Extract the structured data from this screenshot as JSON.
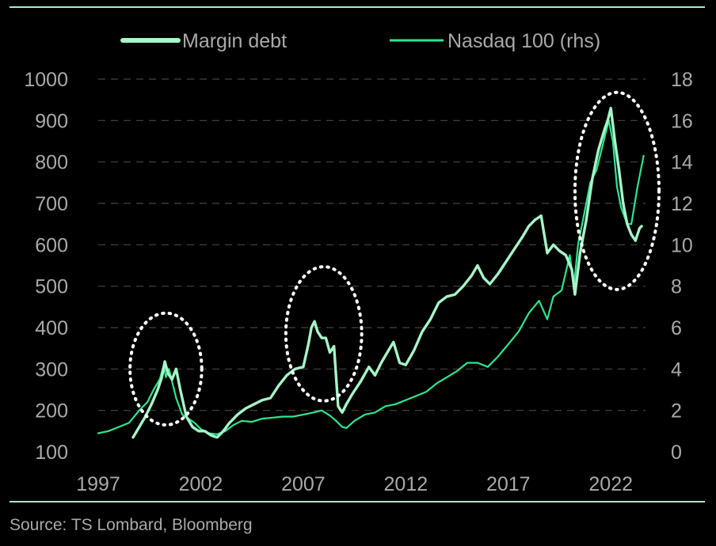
{
  "source_note": "Source: TS Lombard, Bloomberg",
  "colors": {
    "background": "#000000",
    "frame_line": "#9ef2c3",
    "margin_debt": "#a6f5c8",
    "nasdaq": "#2ee58e",
    "text": "#a9a9a9",
    "grid": "#444444",
    "highlight_circle": "#ffffff"
  },
  "chart_data": {
    "type": "line",
    "legend": {
      "placement": "top-center",
      "entries": [
        "Margin debt",
        "Nasdaq 100 (rhs)"
      ]
    },
    "x_tick_labels": [
      "1997",
      "2002",
      "2007",
      "2012",
      "2017",
      "2022"
    ],
    "xlim": [
      1997,
      2024
    ],
    "left_axis": {
      "ylim": [
        100,
        1000
      ],
      "tick_labels": [
        "1000",
        "900",
        "800",
        "700",
        "600",
        "500",
        "400",
        "300",
        "200",
        "100"
      ]
    },
    "right_axis": {
      "ylim": [
        0,
        18
      ],
      "tick_labels": [
        "18",
        "16",
        "14",
        "12",
        "10",
        "8",
        "6",
        "4",
        "2",
        "0"
      ]
    },
    "grid": "horizontal dashed",
    "series": [
      {
        "name": "Margin debt",
        "axis": "left",
        "x": [
          1998.7,
          1999.0,
          1999.3,
          1999.6,
          1999.9,
          2000.1,
          2000.25,
          2000.4,
          2000.6,
          2000.8,
          2001.0,
          2001.3,
          2001.6,
          2001.9,
          2002.2,
          2002.5,
          2002.8,
          2003.1,
          2003.4,
          2003.8,
          2004.2,
          2004.6,
          2005.0,
          2005.4,
          2005.8,
          2006.2,
          2006.6,
          2007.0,
          2007.25,
          2007.4,
          2007.55,
          2007.7,
          2007.9,
          2008.1,
          2008.3,
          2008.5,
          2008.7,
          2008.9,
          2009.1,
          2009.4,
          2009.8,
          2010.2,
          2010.5,
          2010.8,
          2011.1,
          2011.4,
          2011.7,
          2012.0,
          2012.4,
          2012.8,
          2013.2,
          2013.6,
          2014.0,
          2014.4,
          2014.8,
          2015.2,
          2015.5,
          2015.8,
          2016.1,
          2016.5,
          2016.9,
          2017.3,
          2017.7,
          2018.0,
          2018.3,
          2018.6,
          2018.9,
          2019.2,
          2019.5,
          2019.8,
          2020.1,
          2020.25,
          2020.5,
          2020.8,
          2021.1,
          2021.4,
          2021.7,
          2021.85,
          2022.0,
          2022.2,
          2022.4,
          2022.6,
          2022.8,
          2023.0,
          2023.2,
          2023.4,
          2023.5
        ],
        "values": [
          135,
          160,
          185,
          215,
          250,
          280,
          318,
          290,
          275,
          300,
          250,
          185,
          160,
          150,
          150,
          140,
          135,
          150,
          170,
          190,
          205,
          215,
          225,
          230,
          260,
          285,
          300,
          305,
          360,
          400,
          415,
          390,
          375,
          375,
          340,
          355,
          210,
          195,
          215,
          240,
          270,
          305,
          285,
          315,
          340,
          365,
          315,
          310,
          345,
          390,
          420,
          460,
          475,
          480,
          500,
          525,
          550,
          520,
          505,
          530,
          560,
          590,
          620,
          645,
          660,
          670,
          580,
          600,
          585,
          575,
          540,
          480,
          580,
          660,
          760,
          830,
          880,
          900,
          930,
          850,
          780,
          700,
          650,
          625,
          610,
          640,
          645
        ]
      },
      {
        "name": "Nasdaq 100 (rhs)",
        "axis": "right",
        "x": [
          1997.0,
          1997.5,
          1998.0,
          1998.5,
          1999.0,
          1999.4,
          1999.7,
          2000.0,
          2000.2,
          2000.3,
          2000.45,
          2000.6,
          2000.8,
          2001.1,
          2001.4,
          2001.7,
          2002.0,
          2002.4,
          2002.8,
          2003.2,
          2003.6,
          2004.0,
          2004.5,
          2005.0,
          2005.5,
          2006.0,
          2006.5,
          2007.0,
          2007.5,
          2007.9,
          2008.3,
          2008.6,
          2008.9,
          2009.1,
          2009.5,
          2010.0,
          2010.5,
          2011.0,
          2011.5,
          2012.0,
          2012.5,
          2013.0,
          2013.5,
          2014.0,
          2014.5,
          2015.0,
          2015.5,
          2016.0,
          2016.5,
          2017.0,
          2017.5,
          2018.0,
          2018.5,
          2018.9,
          2019.2,
          2019.6,
          2020.0,
          2020.2,
          2020.4,
          2020.7,
          2021.0,
          2021.3,
          2021.6,
          2021.9,
          2022.1,
          2022.3,
          2022.5,
          2022.8,
          2023.0,
          2023.3,
          2023.6
        ],
        "values": [
          0.9,
          1.0,
          1.2,
          1.4,
          2.0,
          2.4,
          3.0,
          3.5,
          4.2,
          3.6,
          4.0,
          3.4,
          2.6,
          1.8,
          1.6,
          1.4,
          1.1,
          0.9,
          0.85,
          1.0,
          1.3,
          1.5,
          1.45,
          1.6,
          1.65,
          1.7,
          1.7,
          1.8,
          1.9,
          2.0,
          1.75,
          1.5,
          1.2,
          1.15,
          1.5,
          1.8,
          1.9,
          2.2,
          2.3,
          2.5,
          2.7,
          2.9,
          3.3,
          3.6,
          3.9,
          4.3,
          4.3,
          4.1,
          4.6,
          5.2,
          5.8,
          6.7,
          7.3,
          6.4,
          7.5,
          7.8,
          9.5,
          8.0,
          10.0,
          11.5,
          13.0,
          13.6,
          14.8,
          16.0,
          15.0,
          12.8,
          11.8,
          11.0,
          11.0,
          12.8,
          14.3
        ]
      }
    ],
    "highlights": [
      {
        "x_center": 2000.3,
        "y_center": 300,
        "x_half_width": 1.75,
        "y_half_height": 135
      },
      {
        "x_center": 2008.0,
        "y_center": 385,
        "x_half_width": 1.85,
        "y_half_height": 162
      },
      {
        "x_center": 2022.3,
        "y_center": 730,
        "x_half_width": 2.05,
        "y_half_height": 238
      }
    ]
  }
}
